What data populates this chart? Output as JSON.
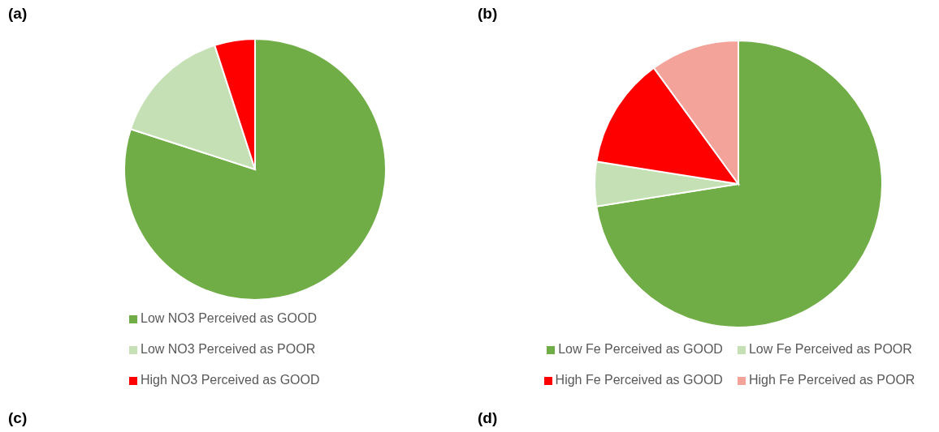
{
  "chart_data": [
    {
      "type": "pie",
      "title": "(a)",
      "categories": [
        "Low NO3 Perceived as GOOD",
        "Low NO3 Perceived as POOR",
        "High NO3 Perceived as GOOD"
      ],
      "values": [
        80,
        15,
        5
      ],
      "colors": [
        "#70ad47",
        "#c5e0b4",
        "#ff0000"
      ],
      "legend": "bottom",
      "annotations": [
        "(c)"
      ]
    },
    {
      "type": "pie",
      "title": "(b)",
      "categories": [
        "Low Fe Perceived as GOOD",
        "Low Fe Perceived as POOR",
        "High Fe Perceived as GOOD",
        "High Fe Perceived as POOR"
      ],
      "values": [
        72.5,
        5,
        12.5,
        10
      ],
      "colors": [
        "#70ad47",
        "#c5e0b4",
        "#ff0000",
        "#f4a39a"
      ],
      "legend": "bottom",
      "annotations": [
        "(d)"
      ]
    }
  ]
}
